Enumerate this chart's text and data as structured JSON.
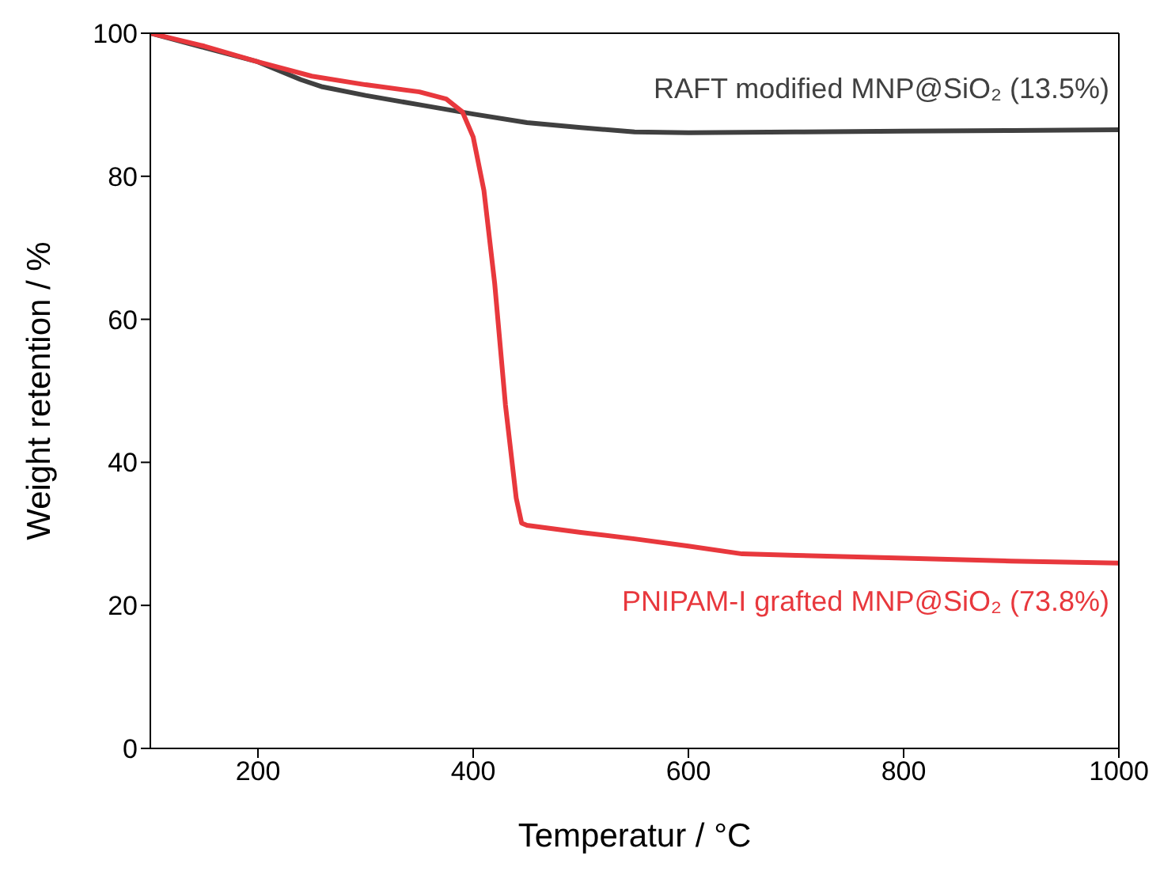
{
  "chart_data": {
    "type": "line",
    "xlabel": "Temperatur / °C",
    "ylabel": "Weight retention / %",
    "xlim": [
      100,
      1000
    ],
    "xticks": [
      200,
      400,
      600,
      800,
      1000
    ],
    "ylim": [
      0,
      100
    ],
    "yticks": [
      0,
      20,
      40,
      60,
      80,
      100
    ],
    "marker": "none",
    "line_style": "solid",
    "series": [
      {
        "name": "RAFT modified MNP@SiO₂  (13.5%)",
        "color": "#404040",
        "x": [
          100,
          150,
          200,
          240,
          260,
          300,
          350,
          400,
          450,
          500,
          550,
          600,
          700,
          800,
          900,
          1000
        ],
        "values": [
          100,
          98,
          96,
          93.5,
          92.5,
          91.3,
          90,
          88.7,
          87.5,
          86.8,
          86.2,
          86.1,
          86.2,
          86.3,
          86.4,
          86.5
        ]
      },
      {
        "name": "PNIPAM-I grafted MNP@SiO₂ (73.8%)",
        "color": "#e8383d",
        "x": [
          100,
          150,
          200,
          250,
          300,
          350,
          375,
          390,
          400,
          410,
          420,
          430,
          440,
          445,
          450,
          500,
          550,
          600,
          650,
          700,
          800,
          900,
          1000
        ],
        "values": [
          100,
          98.2,
          96,
          94,
          92.8,
          91.8,
          90.8,
          89,
          85.5,
          78,
          65,
          48,
          35,
          31.5,
          31.2,
          30.2,
          29.3,
          28.3,
          27.2,
          27,
          26.6,
          26.2,
          25.9
        ]
      }
    ]
  }
}
